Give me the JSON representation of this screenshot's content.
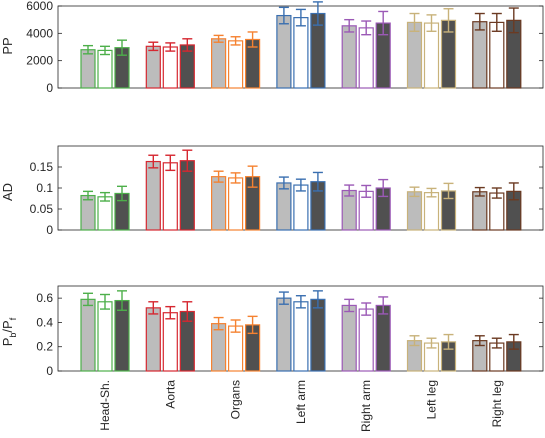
{
  "chart_data": [
    {
      "type": "bar",
      "panel": "top",
      "ylabel": "PP",
      "ylim": [
        0,
        6000
      ],
      "yticks": [
        "0",
        "2000",
        "4000",
        "6000"
      ],
      "ytick_values": [
        0,
        2000,
        4000,
        6000
      ],
      "categories": [
        "Head-Sh.",
        "Aorta",
        "Organs",
        "Left arm",
        "Right arm",
        "Left leg",
        "Right leg"
      ],
      "bar_styles": [
        "gray-fill",
        "open",
        "dark-fill"
      ],
      "means": [
        [
          2800,
          2750,
          2950
        ],
        [
          3050,
          3000,
          3150
        ],
        [
          3600,
          3450,
          3550
        ],
        [
          5300,
          5150,
          5450
        ],
        [
          4550,
          4400,
          4750
        ],
        [
          4800,
          4750,
          4950
        ],
        [
          4850,
          4800,
          4950
        ]
      ],
      "errors": [
        [
          300,
          300,
          550
        ],
        [
          300,
          300,
          450
        ],
        [
          250,
          300,
          550
        ],
        [
          600,
          600,
          850
        ],
        [
          450,
          500,
          850
        ],
        [
          650,
          600,
          850
        ],
        [
          600,
          650,
          900
        ]
      ]
    },
    {
      "type": "bar",
      "panel": "middle",
      "ylabel": "AD",
      "ylim": [
        0,
        0.2
      ],
      "yticks": [
        "0",
        "0.05",
        "0.1",
        "0.15"
      ],
      "ytick_values": [
        0,
        0.05,
        0.1,
        0.15
      ],
      "categories": [
        "Head-Sh.",
        "Aorta",
        "Organs",
        "Left arm",
        "Right arm",
        "Left leg",
        "Right leg"
      ],
      "bar_styles": [
        "gray-fill",
        "open",
        "dark-fill"
      ],
      "means": [
        [
          0.082,
          0.079,
          0.087
        ],
        [
          0.163,
          0.16,
          0.165
        ],
        [
          0.127,
          0.124,
          0.127
        ],
        [
          0.112,
          0.107,
          0.115
        ],
        [
          0.094,
          0.092,
          0.1
        ],
        [
          0.091,
          0.089,
          0.093
        ],
        [
          0.091,
          0.088,
          0.092
        ]
      ],
      "errors": [
        [
          0.01,
          0.01,
          0.017
        ],
        [
          0.015,
          0.018,
          0.025
        ],
        [
          0.013,
          0.012,
          0.025
        ],
        [
          0.014,
          0.014,
          0.022
        ],
        [
          0.013,
          0.014,
          0.02
        ],
        [
          0.011,
          0.01,
          0.018
        ],
        [
          0.01,
          0.012,
          0.02
        ]
      ]
    },
    {
      "type": "bar",
      "panel": "bottom",
      "ylabel": "Pb/Pf",
      "ylabel_parts": [
        "P",
        "b",
        "/P",
        "f"
      ],
      "ylim": [
        0,
        0.7
      ],
      "yticks": [
        "0",
        "0.2",
        "0.4",
        "0.6"
      ],
      "ytick_values": [
        0,
        0.2,
        0.4,
        0.6
      ],
      "categories": [
        "Head-Sh.",
        "Aorta",
        "Organs",
        "Left arm",
        "Right arm",
        "Left leg",
        "Right leg"
      ],
      "bar_styles": [
        "gray-fill",
        "open",
        "dark-fill"
      ],
      "means": [
        [
          0.59,
          0.57,
          0.58
        ],
        [
          0.52,
          0.48,
          0.49
        ],
        [
          0.39,
          0.37,
          0.38
        ],
        [
          0.6,
          0.57,
          0.59
        ],
        [
          0.54,
          0.51,
          0.54
        ],
        [
          0.25,
          0.23,
          0.24
        ],
        [
          0.25,
          0.23,
          0.24
        ]
      ],
      "errors": [
        [
          0.05,
          0.06,
          0.08
        ],
        [
          0.05,
          0.05,
          0.08
        ],
        [
          0.05,
          0.05,
          0.07
        ],
        [
          0.05,
          0.05,
          0.07
        ],
        [
          0.05,
          0.05,
          0.07
        ],
        [
          0.04,
          0.04,
          0.06
        ],
        [
          0.04,
          0.04,
          0.06
        ]
      ]
    }
  ],
  "colors": {
    "edges": [
      "#4daf4a",
      "#d62730",
      "#f58231",
      "#3a6fb0",
      "#9b59b6",
      "#c8b27a",
      "#6b3a22"
    ],
    "gray_fill": "#bcbcbc",
    "dark_fill": "#505050",
    "axis": "#262626",
    "grid_background": "#ffffff"
  }
}
